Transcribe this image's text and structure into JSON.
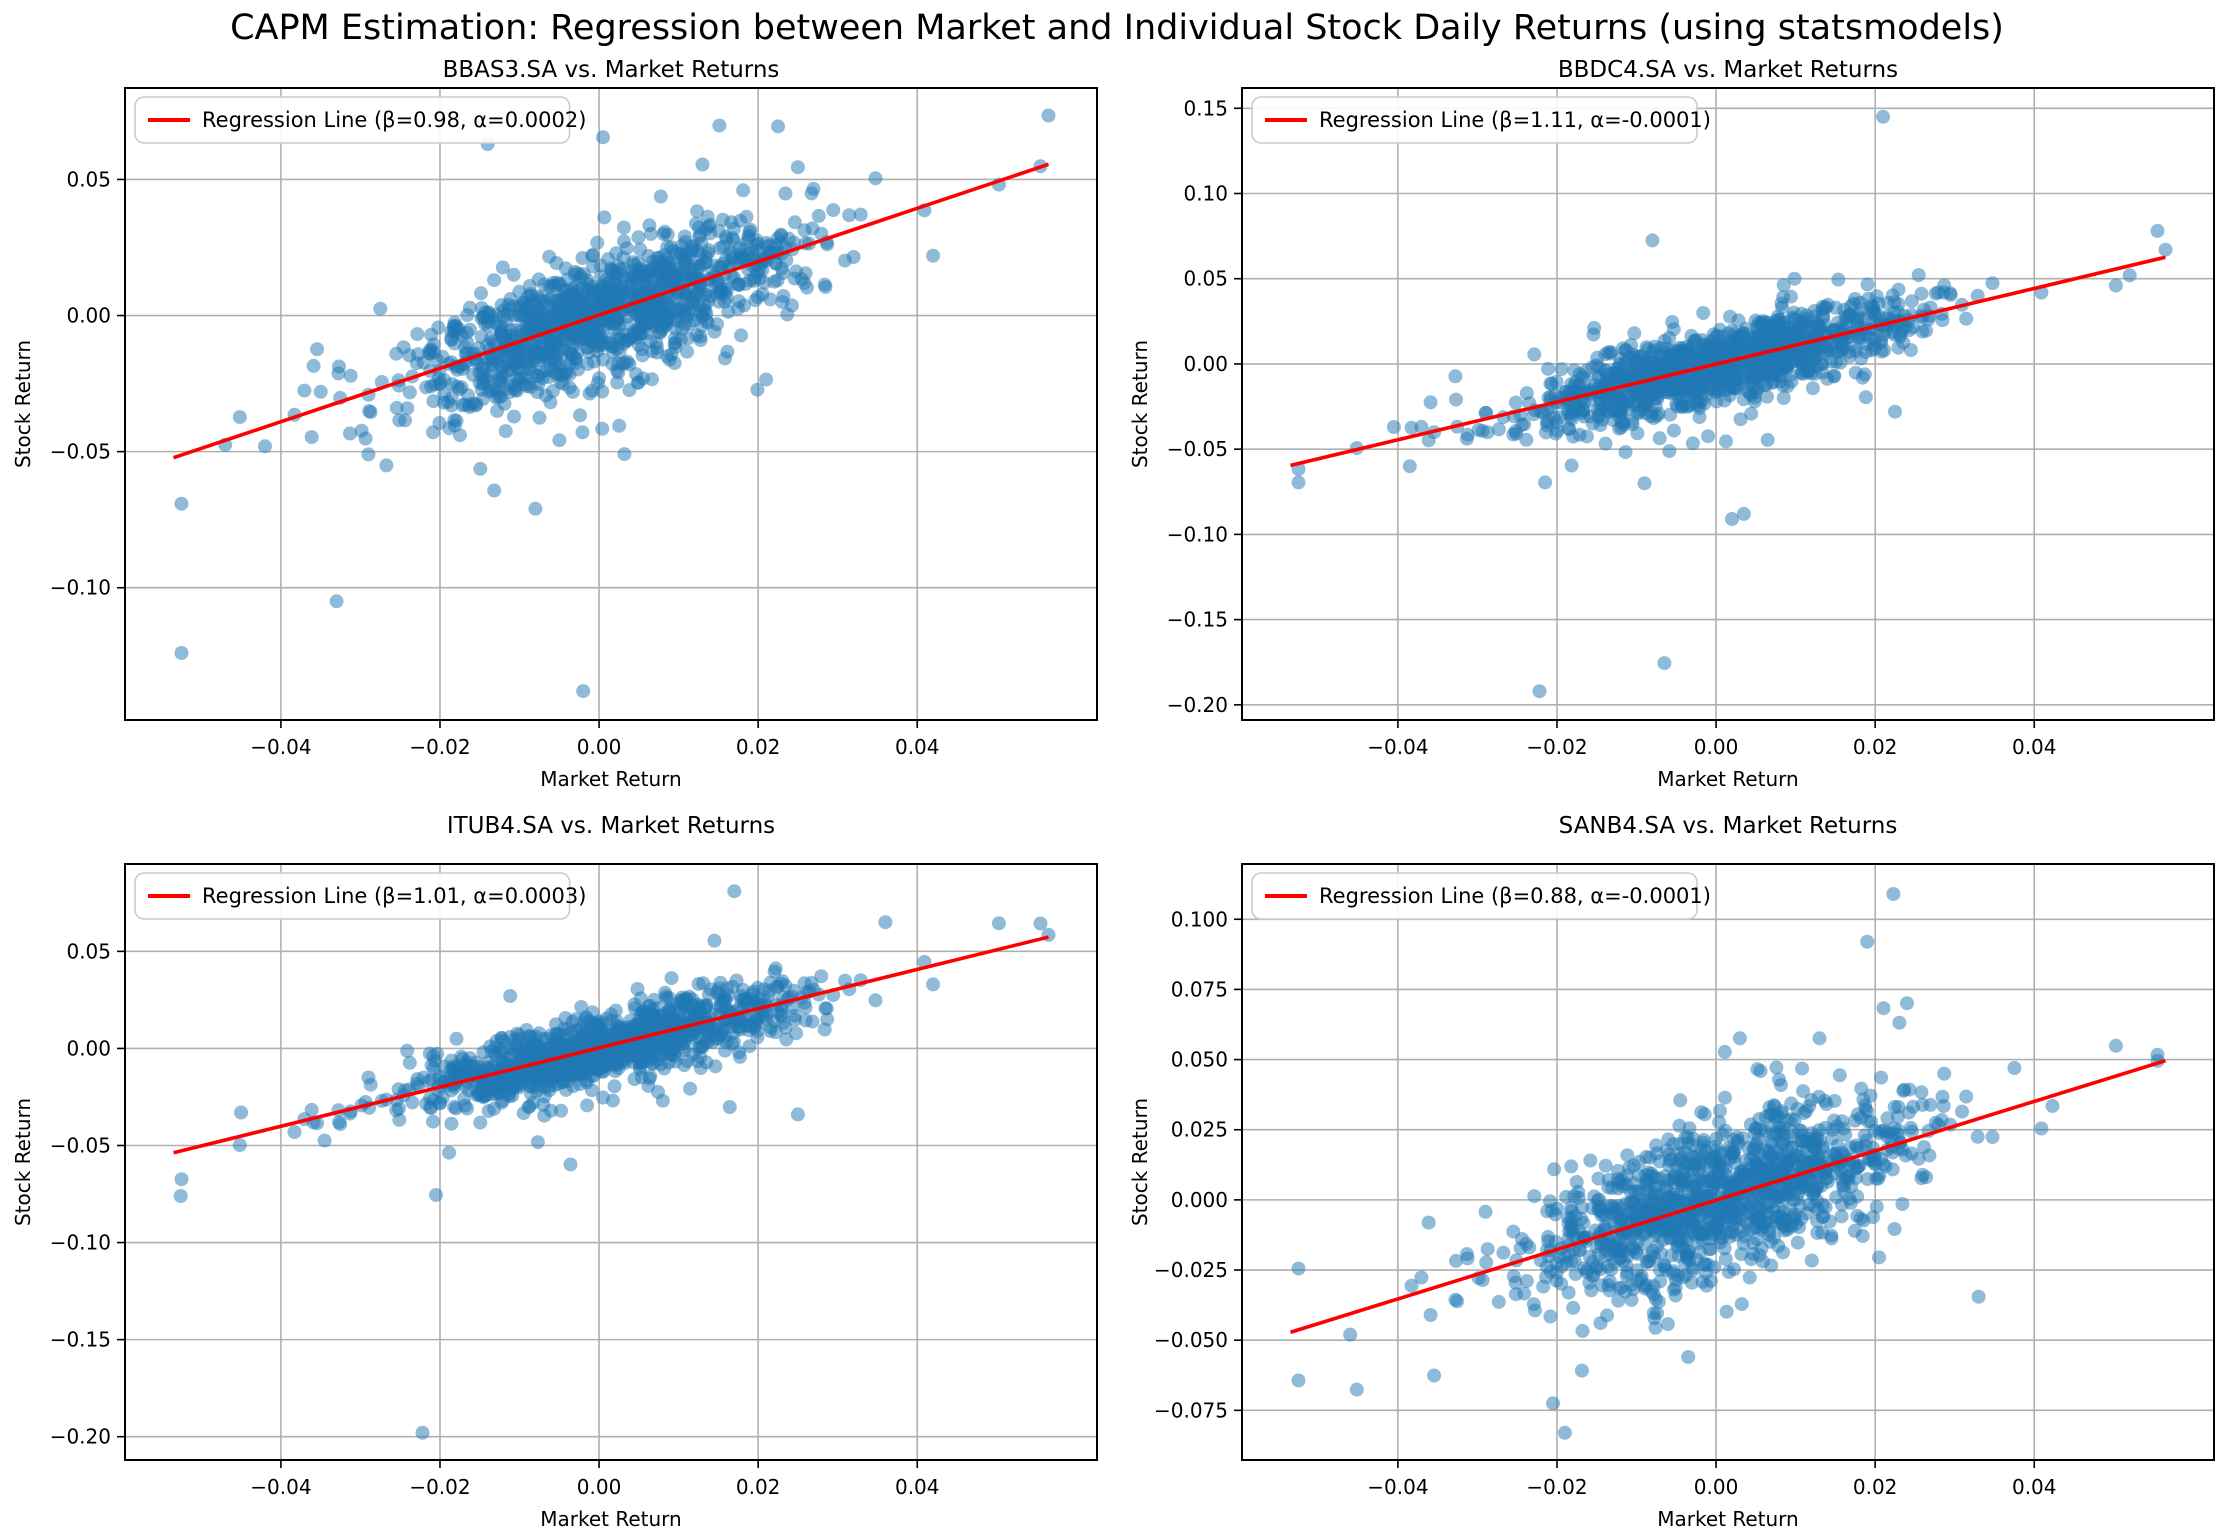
{
  "figure": {
    "title": "CAPM Estimation: Regression between Market and Individual Stock Daily Returns (using statsmodels)"
  },
  "style": {
    "background": "#ffffff",
    "scatter_color": "#1f77b4",
    "scatter_opacity": 0.5,
    "line_color": "#ff0000",
    "grid_color": "#b0b0b0",
    "spine_color": "#000000",
    "tick_color": "#000000",
    "text_color": "#000000",
    "legend_border": "#cccccc",
    "legend_background": "#ffffff"
  },
  "market": {
    "x_label": "Market Return",
    "xlim": [
      -0.0596,
      0.0626
    ],
    "xticks": [
      -0.04,
      -0.02,
      0,
      0.02,
      0.04
    ],
    "xtick_labels": [
      "−0.04",
      "−0.02",
      "0.00",
      "0.02",
      "0.04"
    ],
    "x_range": [
      -0.0535,
      0.0565
    ],
    "n_points": 1230,
    "x_std": 0.0118,
    "seed": 42
  },
  "chart_data": [
    {
      "type": "scatter",
      "stock": "BBAS3.SA",
      "title": "BBAS3.SA vs. Market Returns",
      "xlabel": "Market Return",
      "ylabel": "Stock Return",
      "legend": "Regression Line (β=0.98, α=0.0002)",
      "beta": 0.98,
      "alpha": 0.0002,
      "ylim": [
        -0.1486,
        0.0836
      ],
      "yticks": [
        0.05,
        0,
        -0.05,
        -0.1
      ],
      "ytick_labels": [
        "0.05",
        "0.00",
        "−0.05",
        "−0.10"
      ],
      "residual_std": 0.011,
      "spread_hint": "negative-tail",
      "seed": 101,
      "regression_x": [
        -0.0535,
        0.0565
      ],
      "outlier_points": [
        [
          -0.0525,
          -0.124
        ],
        [
          -0.033,
          -0.105
        ],
        [
          -0.002,
          -0.138
        ],
        [
          -0.008,
          -0.071
        ],
        [
          0.0565,
          0.0735
        ],
        [
          0.0225,
          0.0695
        ],
        [
          0.0005,
          0.0655
        ],
        [
          -0.014,
          0.063
        ],
        [
          0.013,
          0.0555
        ],
        [
          0.025,
          0.0545
        ],
        [
          0.032,
          0.0215
        ],
        [
          0.042,
          0.022
        ],
        [
          -0.047,
          -0.0475
        ],
        [
          -0.042,
          -0.048
        ],
        [
          -0.035,
          -0.028
        ],
        [
          0.021,
          -0.0235
        ],
        [
          -0.029,
          -0.051
        ],
        [
          -0.0275,
          0.0025
        ]
      ]
    },
    {
      "type": "scatter",
      "stock": "BBDC4.SA",
      "title": "BBDC4.SA vs. Market Returns",
      "xlabel": "Market Return",
      "ylabel": "Stock Return",
      "legend": "Regression Line (β=1.11, α=-0.0001)",
      "beta": 1.11,
      "alpha": -0.0001,
      "ylim": [
        -0.2089,
        0.1619
      ],
      "yticks": [
        0.15,
        0.1,
        0.05,
        0,
        -0.05,
        -0.1,
        -0.15,
        -0.2
      ],
      "ytick_labels": [
        "0.15",
        "0.10",
        "0.05",
        "0.00",
        "−0.05",
        "−0.10",
        "−0.15",
        "−0.20"
      ],
      "residual_std": 0.0105,
      "spread_hint": "negative-tail",
      "seed": 202,
      "regression_x": [
        -0.0535,
        0.0565
      ],
      "outlier_points": [
        [
          0.021,
          0.145
        ],
        [
          -0.0222,
          -0.192
        ],
        [
          -0.0065,
          -0.1755
        ],
        [
          0.002,
          -0.091
        ],
        [
          0.0035,
          -0.088
        ],
        [
          -0.008,
          0.0725
        ],
        [
          0.0565,
          0.067
        ],
        [
          -0.0525,
          -0.0695
        ],
        [
          -0.0385,
          -0.06
        ],
        [
          0.052,
          0.052
        ],
        [
          -0.0215,
          -0.0695
        ],
        [
          -0.009,
          -0.07
        ],
        [
          -0.0405,
          -0.037
        ],
        [
          0.0295,
          0.0405
        ],
        [
          0.0225,
          -0.028
        ]
      ]
    },
    {
      "type": "scatter",
      "stock": "ITUB4.SA",
      "title": "ITUB4.SA vs. Market Returns",
      "xlabel": "Market Return",
      "ylabel": "Stock Return",
      "legend": "Regression Line (β=1.01, α=0.0003)",
      "beta": 1.01,
      "alpha": 0.0003,
      "ylim": [
        -0.212,
        0.095
      ],
      "yticks": [
        0.05,
        0,
        -0.05,
        -0.1,
        -0.15,
        -0.2
      ],
      "ytick_labels": [
        "0.05",
        "0.00",
        "−0.05",
        "−0.10",
        "−0.15",
        "−0.20"
      ],
      "residual_std": 0.0085,
      "spread_hint": "negative-tail",
      "seed": 303,
      "regression_x": [
        -0.0535,
        0.0565
      ],
      "outlier_points": [
        [
          -0.0222,
          -0.198
        ],
        [
          0.017,
          0.081
        ],
        [
          -0.0526,
          -0.076
        ],
        [
          0.0565,
          0.0585
        ],
        [
          -0.045,
          -0.033
        ],
        [
          0.036,
          0.065
        ],
        [
          0.042,
          0.033
        ],
        [
          -0.0205,
          -0.0755
        ],
        [
          0.0145,
          0.0555
        ],
        [
          -0.0345,
          -0.0475
        ],
        [
          0.025,
          -0.034
        ]
      ]
    },
    {
      "type": "scatter",
      "stock": "SANB4.SA",
      "title": "SANB4.SA vs. Market Returns",
      "xlabel": "Market Return",
      "ylabel": "Stock Return",
      "legend": "Regression Line (β=0.88, α=-0.0001)",
      "beta": 0.88,
      "alpha": -0.0001,
      "ylim": [
        -0.0927,
        0.1197
      ],
      "yticks": [
        0.1,
        0.075,
        0.05,
        0.025,
        0,
        -0.025,
        -0.05,
        -0.075
      ],
      "ytick_labels": [
        "0.100",
        "0.075",
        "0.050",
        "0.025",
        "0.000",
        "−0.025",
        "−0.050",
        "−0.075"
      ],
      "residual_std": 0.0135,
      "spread_hint": "symmetric",
      "seed": 404,
      "regression_x": [
        -0.0535,
        0.0565
      ],
      "outlier_points": [
        [
          0.0223,
          0.109
        ],
        [
          0.019,
          0.092
        ],
        [
          0.024,
          0.0701
        ],
        [
          0.003,
          0.0576
        ],
        [
          0.013,
          0.0576
        ],
        [
          0.0555,
          0.0517
        ],
        [
          0.0052,
          0.0466
        ],
        [
          0.0108,
          0.0468
        ],
        [
          0.0423,
          0.0335
        ],
        [
          -0.019,
          -0.083
        ],
        [
          -0.0525,
          -0.0245
        ],
        [
          -0.046,
          -0.048
        ],
        [
          -0.0035,
          -0.056
        ],
        [
          0.0375,
          0.047
        ],
        [
          -0.0205,
          -0.0725
        ],
        [
          0.033,
          -0.0345
        ]
      ]
    }
  ]
}
